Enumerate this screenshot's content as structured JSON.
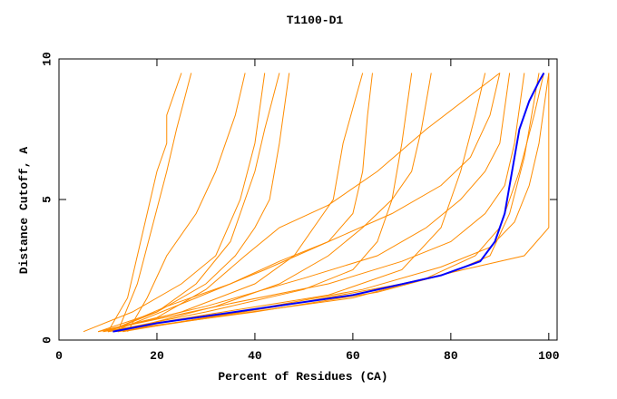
{
  "chart_data": {
    "type": "line",
    "title": "T1100-D1",
    "x_label": "Percent of Residues (CA)",
    "y_label": "Distance Cutoff, A",
    "xlim": [
      0,
      101.7
    ],
    "ylim": [
      0,
      10
    ],
    "xticks": [
      0,
      20,
      40,
      60,
      80,
      100
    ],
    "yticks": [
      0,
      5,
      10
    ],
    "grid": false,
    "series": [
      {
        "color": "#ff8c00",
        "x": [
          10,
          14,
          16,
          18,
          20,
          22,
          22,
          25
        ],
        "values": [
          0.3,
          1.5,
          3,
          4.5,
          6,
          7,
          8,
          9.5
        ]
      },
      {
        "color": "#ff8c00",
        "x": [
          12,
          16,
          19,
          22,
          24,
          27
        ],
        "values": [
          0.3,
          2,
          4,
          6,
          7.5,
          9.5
        ]
      },
      {
        "color": "#ff8c00",
        "x": [
          8,
          20,
          30,
          36,
          40,
          43,
          45,
          47
        ],
        "values": [
          0.3,
          1,
          2,
          3,
          4,
          5,
          7,
          9.5
        ]
      },
      {
        "color": "#ff8c00",
        "x": [
          9,
          25,
          40,
          48,
          52,
          56,
          58,
          62
        ],
        "values": [
          0.3,
          1,
          2,
          3,
          4,
          5,
          7,
          9.5
        ]
      },
      {
        "color": "#ff8c00",
        "x": [
          10,
          30,
          50,
          60,
          65,
          68,
          70,
          72
        ],
        "values": [
          0.3,
          1,
          1.8,
          2.5,
          3.5,
          5,
          7,
          9.5
        ]
      },
      {
        "color": "#ff8c00",
        "x": [
          9,
          30,
          55,
          70,
          78,
          82,
          85,
          87
        ],
        "values": [
          0.3,
          0.9,
          1.6,
          2.5,
          4,
          6,
          8,
          9.5
        ]
      },
      {
        "color": "#ff8c00",
        "x": [
          12,
          35,
          60,
          75,
          85,
          90,
          94,
          97,
          99
        ],
        "values": [
          0.3,
          0.9,
          1.5,
          2.2,
          3,
          4,
          6,
          8,
          9.5
        ]
      },
      {
        "color": "#ff8c00",
        "x": [
          10,
          40,
          65,
          80,
          88,
          92,
          95,
          98
        ],
        "values": [
          0.3,
          1,
          1.7,
          2.4,
          3,
          4.5,
          6.5,
          9.5
        ]
      },
      {
        "color": "#ff8c00",
        "x": [
          8,
          30,
          50,
          65,
          75,
          82,
          87,
          90,
          92
        ],
        "values": [
          0.3,
          1.2,
          2.2,
          3,
          4,
          5,
          6,
          7,
          9.5
        ]
      },
      {
        "color": "#ff8c00",
        "x": [
          11,
          28,
          42,
          55,
          68,
          78,
          84,
          88,
          90
        ],
        "values": [
          0.3,
          1.5,
          2.5,
          3.5,
          4.5,
          5.5,
          6.5,
          8,
          9.5
        ]
      },
      {
        "color": "#ff8c00",
        "x": [
          5,
          15,
          25,
          32,
          37,
          40,
          42
        ],
        "values": [
          0.3,
          1,
          2,
          3,
          5,
          7,
          9.5
        ]
      },
      {
        "color": "#ff8c00",
        "x": [
          10,
          20,
          28,
          35,
          40,
          42,
          45
        ],
        "values": [
          0.3,
          1,
          2,
          3.5,
          6,
          7.5,
          9.5
        ]
      },
      {
        "color": "#ff8c00",
        "x": [
          12,
          32,
          45,
          55,
          62,
          68,
          72,
          74,
          76
        ],
        "values": [
          0.3,
          1.2,
          2,
          3,
          4,
          5,
          6,
          7.5,
          9.5
        ]
      },
      {
        "color": "#ff8c00",
        "x": [
          8,
          35,
          55,
          70,
          80,
          87,
          91,
          93,
          95
        ],
        "values": [
          0.3,
          1.3,
          2,
          2.8,
          3.5,
          4.5,
          5.5,
          7,
          9.5
        ]
      },
      {
        "color": "#ff8c00",
        "x": [
          13,
          40,
          62,
          78,
          88,
          93,
          96,
          98,
          100
        ],
        "values": [
          0.3,
          1.1,
          1.8,
          2.6,
          3.3,
          4.2,
          5.5,
          7,
          9.5
        ]
      },
      {
        "color": "#ff8c00",
        "x": [
          9,
          20,
          30,
          38,
          45,
          55,
          65,
          75,
          90
        ],
        "values": [
          0.3,
          0.8,
          1.8,
          3,
          4,
          4.8,
          6,
          7.5,
          9.5
        ]
      },
      {
        "color": "#ff8c00",
        "x": [
          14,
          18,
          22,
          28,
          32,
          36,
          38
        ],
        "values": [
          0.3,
          1.5,
          3,
          4.5,
          6,
          8,
          9.5
        ]
      },
      {
        "color": "#ff8c00",
        "x": [
          10,
          22,
          35,
          45,
          55,
          60,
          62,
          63,
          64
        ],
        "values": [
          0.3,
          1.2,
          2,
          2.8,
          3.5,
          4.5,
          6,
          8,
          9.5
        ]
      },
      {
        "color": "#ff8c00",
        "x": [
          12,
          45,
          70,
          85,
          95,
          100,
          100
        ],
        "values": [
          0.3,
          1.2,
          2,
          2.6,
          3,
          4,
          9.5
        ]
      },
      {
        "color": "#0000ff",
        "x": [
          11,
          20,
          40,
          60,
          78,
          86,
          89,
          91,
          92,
          93,
          94,
          96,
          98,
          99
        ],
        "values": [
          0.3,
          0.6,
          1.1,
          1.6,
          2.3,
          2.8,
          3.5,
          4.5,
          5.5,
          6.5,
          7.5,
          8.5,
          9.2,
          9.5
        ]
      }
    ]
  }
}
